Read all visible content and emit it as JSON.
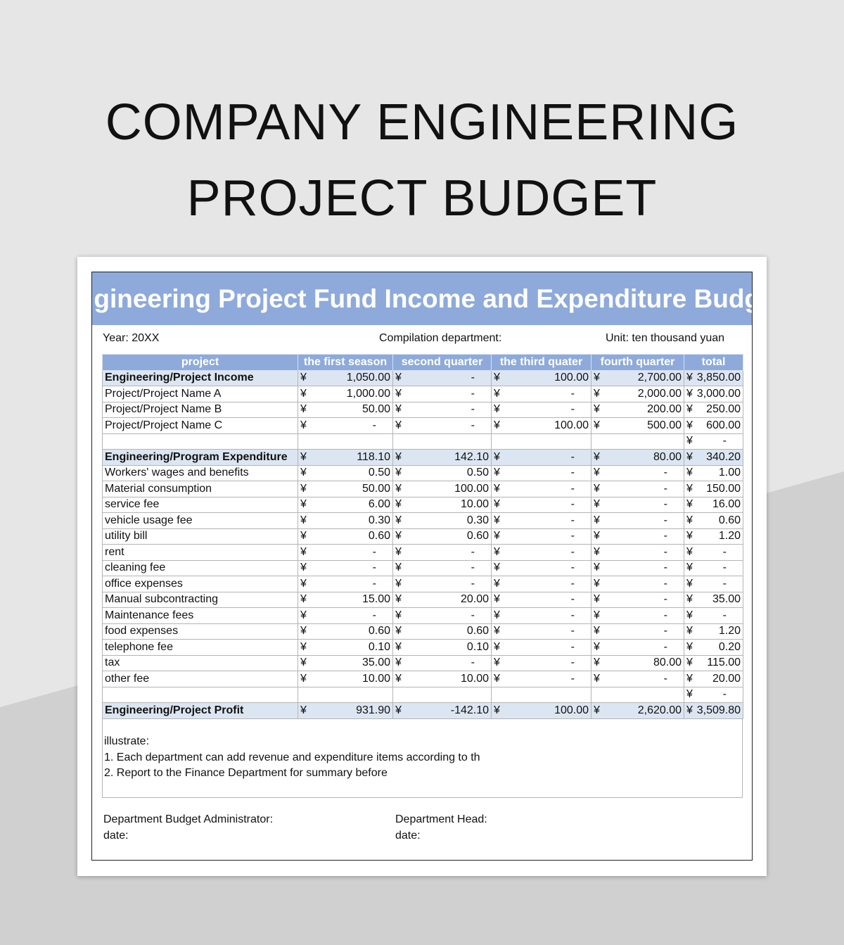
{
  "heading": [
    "COMPANY ENGINEERING",
    "PROJECT BUDGET"
  ],
  "sheet": {
    "title": "Engineering Project Fund Income and Expenditure Budget",
    "year": "Year: 20XX",
    "department": "Compilation department:",
    "unit": "Unit: ten thousand yuan",
    "currency": "¥",
    "columns": [
      "project",
      "the first season",
      "second quarter",
      "the third quater",
      "fourth quarter",
      "total"
    ],
    "rows": [
      {
        "label": "Engineering/Project Income",
        "bold": true,
        "values": [
          "1,050.00",
          "-",
          "100.00",
          "2,700.00",
          "3,850.00"
        ]
      },
      {
        "label": "Project/Project Name A",
        "values": [
          "1,000.00",
          "-",
          "-",
          "2,000.00",
          "3,000.00"
        ]
      },
      {
        "label": "Project/Project Name B",
        "values": [
          "50.00",
          "-",
          "-",
          "200.00",
          "250.00"
        ]
      },
      {
        "label": "Project/Project Name C",
        "values": [
          "-",
          "-",
          "100.00",
          "500.00",
          "600.00"
        ]
      },
      {
        "label": "",
        "empty": true,
        "values": [
          "",
          "",
          "",
          "",
          "-"
        ]
      },
      {
        "label": "Engineering/Program Expenditure",
        "bold": true,
        "values": [
          "118.10",
          "142.10",
          "-",
          "80.00",
          "340.20"
        ]
      },
      {
        "label": "Workers' wages and benefits",
        "values": [
          "0.50",
          "0.50",
          "-",
          "-",
          "1.00"
        ]
      },
      {
        "label": "Material consumption",
        "values": [
          "50.00",
          "100.00",
          "-",
          "-",
          "150.00"
        ]
      },
      {
        "label": "service fee",
        "values": [
          "6.00",
          "10.00",
          "-",
          "-",
          "16.00"
        ]
      },
      {
        "label": "vehicle usage fee",
        "values": [
          "0.30",
          "0.30",
          "-",
          "-",
          "0.60"
        ]
      },
      {
        "label": "utility bill",
        "values": [
          "0.60",
          "0.60",
          "-",
          "-",
          "1.20"
        ]
      },
      {
        "label": "rent",
        "values": [
          "-",
          "-",
          "-",
          "-",
          "-"
        ]
      },
      {
        "label": "cleaning fee",
        "values": [
          "-",
          "-",
          "-",
          "-",
          "-"
        ]
      },
      {
        "label": "office expenses",
        "values": [
          "-",
          "-",
          "-",
          "-",
          "-"
        ]
      },
      {
        "label": "Manual subcontracting",
        "values": [
          "15.00",
          "20.00",
          "-",
          "-",
          "35.00"
        ]
      },
      {
        "label": "Maintenance fees",
        "values": [
          "-",
          "-",
          "-",
          "-",
          "-"
        ]
      },
      {
        "label": "food expenses",
        "values": [
          "0.60",
          "0.60",
          "-",
          "-",
          "1.20"
        ]
      },
      {
        "label": "telephone fee",
        "values": [
          "0.10",
          "0.10",
          "-",
          "-",
          "0.20"
        ]
      },
      {
        "label": "tax",
        "values": [
          "35.00",
          "-",
          "-",
          "80.00",
          "115.00"
        ]
      },
      {
        "label": "other fee",
        "values": [
          "10.00",
          "10.00",
          "-",
          "-",
          "20.00"
        ]
      },
      {
        "label": "",
        "empty": true,
        "values": [
          "",
          "",
          "",
          "",
          "-"
        ]
      },
      {
        "label": "Engineering/Project Profit",
        "bold": true,
        "values": [
          "931.90",
          "-142.10",
          "100.00",
          "2,620.00",
          "3,509.80"
        ]
      }
    ],
    "notes": [
      "illustrate:",
      "1. Each department can add revenue and expenditure items according to th",
      "2. Report to the Finance Department for summary before"
    ],
    "signatures": {
      "admin": "Department Budget Administrator:",
      "admin_date": "date:",
      "head": "Department Head:",
      "head_date": "date:"
    }
  },
  "colors": {
    "accent": "#8eaadb",
    "highlight": "#dce6f2"
  }
}
